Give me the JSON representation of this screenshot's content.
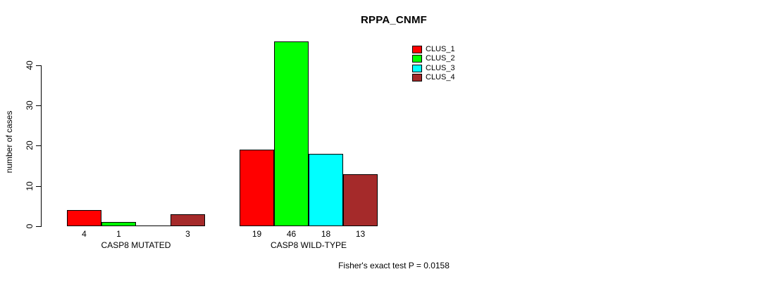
{
  "chart_data": {
    "type": "bar",
    "title": "RPPA_CNMF",
    "ylabel": "number of cases",
    "xlabel": "",
    "ylim": [
      0,
      46
    ],
    "yticks": [
      0,
      10,
      20,
      30,
      40
    ],
    "grid": false,
    "legend_position": "top-right-inside",
    "categories": [
      "CASP8 MUTATED",
      "CASP8 WILD-TYPE"
    ],
    "series": [
      {
        "name": "CLUS_1",
        "color": "#FF0000",
        "values": [
          4,
          19
        ]
      },
      {
        "name": "CLUS_2",
        "color": "#00FF00",
        "values": [
          1,
          46
        ]
      },
      {
        "name": "CLUS_3",
        "color": "#00FFFF",
        "values": [
          0,
          18
        ]
      },
      {
        "name": "CLUS_4",
        "color": "#A52A2A",
        "values": [
          3,
          13
        ]
      }
    ],
    "bar_value_labels": "value shown under each bar; label omitted when value is 0",
    "annotation": "Fisher's exact test P = 0.0158"
  },
  "colors": {
    "axis": "#000000",
    "background": "#FFFFFF",
    "text": "#000000"
  }
}
